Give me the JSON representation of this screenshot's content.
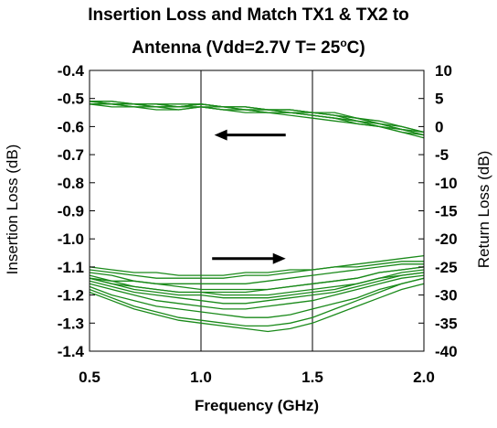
{
  "chart_data": {
    "type": "line",
    "title_line1": "Insertion Loss and Match TX1 & TX2 to",
    "title_line2_prefix": "Antenna (Vdd=2.7V T= 25",
    "title_line2_sup": "o",
    "title_line2_suffix": "C)",
    "xlabel": "Frequency (GHz)",
    "ylabel_left": "Insertion Loss (dB)",
    "ylabel_right": "Return Loss (dB)",
    "xlim": [
      0.5,
      2.0
    ],
    "ylim_left": [
      -1.4,
      -0.4
    ],
    "ylim_right": [
      -40,
      10
    ],
    "x_ticks": [
      "0.5",
      "1.0",
      "1.5",
      "2.0"
    ],
    "y_ticks_left": [
      "-0.4",
      "-0.5",
      "-0.6",
      "-0.7",
      "-0.8",
      "-0.9",
      "-1.0",
      "-1.1",
      "-1.2",
      "-1.3",
      "-1.4"
    ],
    "y_ticks_right": [
      "10",
      "5",
      "0",
      "-5",
      "-10",
      "-15",
      "-20",
      "-25",
      "-30",
      "-35",
      "-40"
    ],
    "grid": "vertical-only",
    "line_color": "#1a8a1a",
    "arrow_color": "#000000",
    "annotations": [
      {
        "type": "arrow",
        "points_to": "left-axis",
        "x_from": 1.38,
        "x_to": 1.06,
        "y_left": -0.63
      },
      {
        "type": "arrow",
        "points_to": "right-axis",
        "x_from": 1.05,
        "x_to": 1.38,
        "y_left": -1.07
      }
    ],
    "x": [
      0.5,
      0.6,
      0.7,
      0.8,
      0.9,
      1.0,
      1.1,
      1.2,
      1.3,
      1.4,
      1.5,
      1.6,
      1.7,
      1.8,
      1.9,
      2.0
    ],
    "insertion_loss_series": [
      {
        "axis": "left",
        "values": [
          -0.51,
          -0.51,
          -0.52,
          -0.52,
          -0.53,
          -0.52,
          -0.53,
          -0.53,
          -0.54,
          -0.54,
          -0.55,
          -0.56,
          -0.57,
          -0.59,
          -0.61,
          -0.63
        ]
      },
      {
        "axis": "left",
        "values": [
          -0.52,
          -0.52,
          -0.52,
          -0.53,
          -0.53,
          -0.53,
          -0.53,
          -0.54,
          -0.54,
          -0.55,
          -0.56,
          -0.57,
          -0.58,
          -0.6,
          -0.61,
          -0.62
        ]
      },
      {
        "axis": "left",
        "values": [
          -0.52,
          -0.52,
          -0.53,
          -0.53,
          -0.54,
          -0.53,
          -0.54,
          -0.54,
          -0.55,
          -0.55,
          -0.56,
          -0.57,
          -0.59,
          -0.6,
          -0.62,
          -0.63
        ]
      },
      {
        "axis": "left",
        "values": [
          -0.51,
          -0.52,
          -0.52,
          -0.53,
          -0.53,
          -0.52,
          -0.53,
          -0.54,
          -0.54,
          -0.55,
          -0.55,
          -0.56,
          -0.58,
          -0.59,
          -0.61,
          -0.62
        ]
      },
      {
        "axis": "left",
        "values": [
          -0.52,
          -0.53,
          -0.53,
          -0.54,
          -0.54,
          -0.53,
          -0.54,
          -0.55,
          -0.55,
          -0.56,
          -0.57,
          -0.58,
          -0.59,
          -0.6,
          -0.62,
          -0.64
        ]
      },
      {
        "axis": "left",
        "values": [
          -0.51,
          -0.51,
          -0.52,
          -0.52,
          -0.52,
          -0.52,
          -0.53,
          -0.53,
          -0.54,
          -0.54,
          -0.55,
          -0.55,
          -0.57,
          -0.58,
          -0.6,
          -0.62
        ]
      },
      {
        "axis": "left",
        "values": [
          -0.52,
          -0.52,
          -0.53,
          -0.53,
          -0.53,
          -0.53,
          -0.54,
          -0.54,
          -0.55,
          -0.55,
          -0.56,
          -0.57,
          -0.58,
          -0.6,
          -0.61,
          -0.63
        ]
      },
      {
        "axis": "left",
        "values": [
          -0.51,
          -0.52,
          -0.52,
          -0.52,
          -0.53,
          -0.52,
          -0.53,
          -0.53,
          -0.54,
          -0.54,
          -0.55,
          -0.56,
          -0.57,
          -0.59,
          -0.6,
          -0.62
        ]
      }
    ],
    "return_loss_series": [
      {
        "axis": "right",
        "values": [
          -25.0,
          -25.5,
          -26.0,
          -26.0,
          -26.5,
          -26.5,
          -26.5,
          -26.0,
          -26.0,
          -25.5,
          -25.5,
          -25.0,
          -24.5,
          -24.0,
          -23.5,
          -23.0
        ]
      },
      {
        "axis": "right",
        "values": [
          -25.5,
          -26.0,
          -26.5,
          -27.0,
          -27.0,
          -27.0,
          -27.0,
          -26.5,
          -26.5,
          -26.0,
          -25.5,
          -25.0,
          -25.0,
          -24.5,
          -24.0,
          -24.0
        ]
      },
      {
        "axis": "right",
        "values": [
          -27.0,
          -27.5,
          -27.5,
          -28.0,
          -28.0,
          -28.0,
          -28.0,
          -28.0,
          -27.5,
          -27.0,
          -26.5,
          -26.0,
          -25.5,
          -25.0,
          -24.5,
          -24.5
        ]
      },
      {
        "axis": "right",
        "values": [
          -26.0,
          -26.5,
          -27.5,
          -28.0,
          -28.5,
          -29.0,
          -29.0,
          -29.0,
          -29.0,
          -28.5,
          -28.0,
          -27.5,
          -27.0,
          -26.0,
          -25.5,
          -25.0
        ]
      },
      {
        "axis": "right",
        "values": [
          -26.5,
          -27.5,
          -28.5,
          -29.0,
          -29.5,
          -29.5,
          -30.0,
          -30.0,
          -30.0,
          -29.5,
          -29.0,
          -28.5,
          -28.0,
          -27.0,
          -26.0,
          -25.5
        ]
      },
      {
        "axis": "right",
        "values": [
          -27.0,
          -28.0,
          -29.0,
          -29.5,
          -30.0,
          -30.0,
          -30.5,
          -30.5,
          -30.5,
          -30.0,
          -29.5,
          -29.0,
          -28.0,
          -27.0,
          -26.5,
          -26.0
        ]
      },
      {
        "axis": "right",
        "values": [
          -27.5,
          -28.5,
          -29.5,
          -30.0,
          -30.5,
          -31.0,
          -31.5,
          -31.5,
          -31.0,
          -30.5,
          -30.0,
          -29.5,
          -28.5,
          -27.5,
          -26.5,
          -26.0
        ]
      },
      {
        "axis": "right",
        "values": [
          -28.0,
          -29.0,
          -30.0,
          -31.0,
          -31.5,
          -32.0,
          -32.5,
          -32.5,
          -32.0,
          -31.5,
          -31.0,
          -30.0,
          -29.0,
          -28.0,
          -27.0,
          -26.5
        ]
      },
      {
        "axis": "right",
        "values": [
          -28.5,
          -30.0,
          -31.0,
          -32.0,
          -32.5,
          -33.0,
          -33.5,
          -34.0,
          -34.0,
          -33.5,
          -32.5,
          -31.5,
          -30.5,
          -29.0,
          -28.0,
          -27.0
        ]
      },
      {
        "axis": "right",
        "values": [
          -29.0,
          -30.5,
          -32.0,
          -33.0,
          -34.0,
          -34.5,
          -35.0,
          -35.5,
          -35.5,
          -35.0,
          -34.0,
          -32.5,
          -31.0,
          -29.5,
          -28.0,
          -27.0
        ]
      },
      {
        "axis": "right",
        "values": [
          -29.5,
          -31.0,
          -32.5,
          -33.5,
          -34.5,
          -35.0,
          -35.5,
          -36.0,
          -36.5,
          -36.0,
          -35.0,
          -33.5,
          -32.0,
          -30.5,
          -29.0,
          -28.0
        ]
      },
      {
        "axis": "right",
        "values": [
          -27.0,
          -28.0,
          -28.5,
          -29.0,
          -29.5,
          -29.5,
          -29.5,
          -29.5,
          -29.0,
          -28.5,
          -28.0,
          -27.5,
          -27.0,
          -26.0,
          -25.5,
          -25.0
        ]
      }
    ]
  }
}
